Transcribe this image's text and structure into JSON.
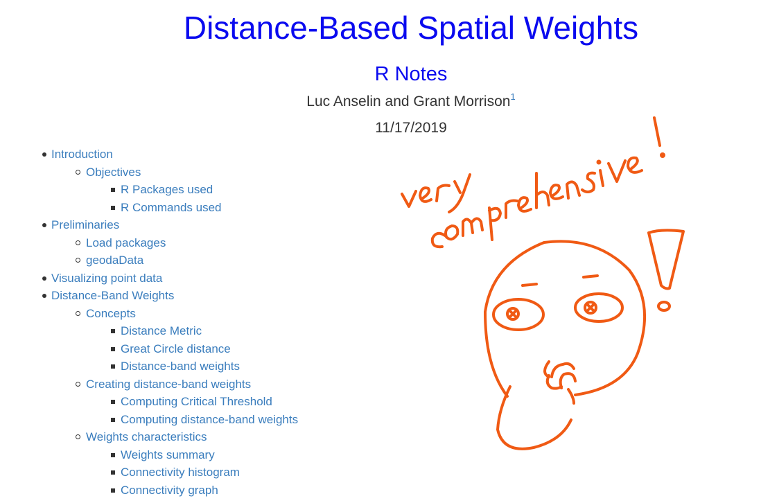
{
  "header": {
    "title": "Distance-Based Spatial Weights",
    "subtitle": "R Notes",
    "authors": "Luc Anselin and Grant Morrison",
    "footnote_mark": "1",
    "date": "11/17/2019"
  },
  "toc": [
    {
      "level": 1,
      "label": "Introduction"
    },
    {
      "level": 2,
      "label": "Objectives"
    },
    {
      "level": 3,
      "label": "R Packages used"
    },
    {
      "level": 3,
      "label": "R Commands used"
    },
    {
      "level": 1,
      "label": "Preliminaries"
    },
    {
      "level": 2,
      "label": "Load packages"
    },
    {
      "level": 2,
      "label": "geodaData"
    },
    {
      "level": 1,
      "label": "Visualizing point data"
    },
    {
      "level": 1,
      "label": "Distance-Band Weights"
    },
    {
      "level": 2,
      "label": "Concepts"
    },
    {
      "level": 3,
      "label": "Distance Metric"
    },
    {
      "level": 3,
      "label": "Great Circle distance"
    },
    {
      "level": 3,
      "label": "Distance-band weights"
    },
    {
      "level": 2,
      "label": "Creating distance-band weights"
    },
    {
      "level": 3,
      "label": "Computing Critical Threshold"
    },
    {
      "level": 3,
      "label": "Computing distance-band weights"
    },
    {
      "level": 2,
      "label": "Weights characteristics"
    },
    {
      "level": 3,
      "label": "Weights summary"
    },
    {
      "level": 3,
      "label": "Connectivity histogram"
    },
    {
      "level": 3,
      "label": "Connectivity graph"
    }
  ],
  "annotation": {
    "handwritten_text": "very comprehensive!",
    "stroke_color": "#f05a14",
    "icon": "thinking-face-sketch-icon"
  },
  "colors": {
    "title": "#0a0aef",
    "link": "#3a7dbd",
    "text": "#333333"
  }
}
